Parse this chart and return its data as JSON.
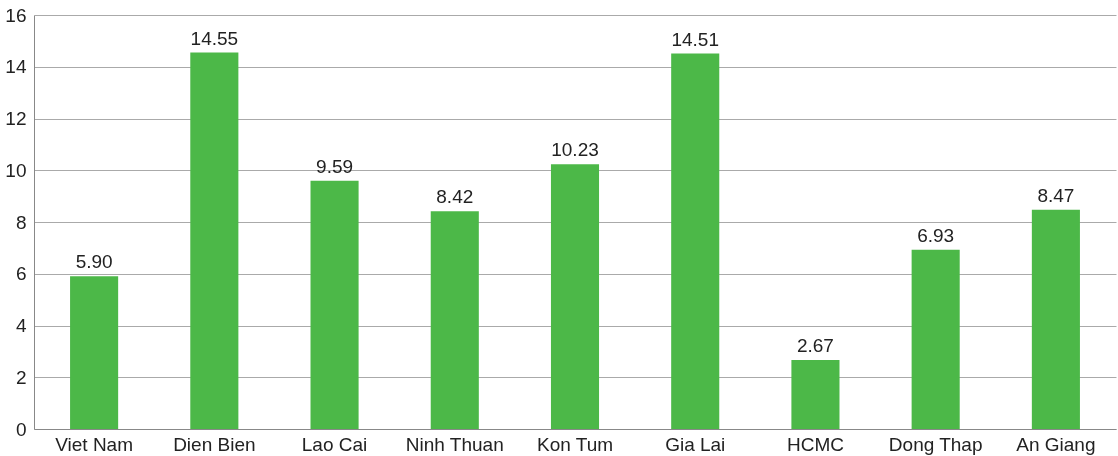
{
  "chart_data": {
    "type": "bar",
    "categories": [
      "Viet Nam",
      "Dien Bien",
      "Lao Cai",
      "Ninh Thuan",
      "Kon Tum",
      "Gia Lai",
      "HCMC",
      "Dong Thap",
      "An Giang"
    ],
    "values": [
      5.9,
      14.55,
      9.59,
      8.42,
      10.23,
      14.51,
      2.67,
      6.93,
      8.47
    ],
    "value_labels": [
      "5.90",
      "14.55",
      "9.59",
      "8.42",
      "10.23",
      "14.51",
      "2.67",
      "6.93",
      "8.47"
    ],
    "color": "#4cb848",
    "ylim": [
      0,
      16
    ],
    "yticks": [
      0,
      2,
      4,
      6,
      8,
      10,
      12,
      14,
      16
    ],
    "grid": "y"
  }
}
